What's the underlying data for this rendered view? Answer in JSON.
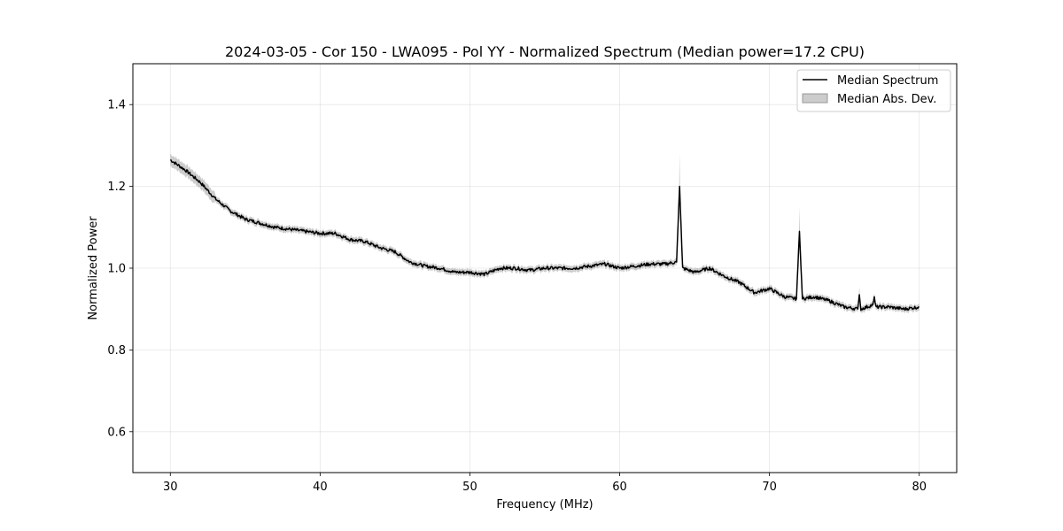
{
  "chart_data": {
    "type": "line",
    "title": "2024-03-05 - Cor 150 - LWA095 - Pol YY - Normalized Spectrum (Median power=17.2 CPU)",
    "xlabel": "Frequency (MHz)",
    "ylabel": "Normalized Power",
    "xlim": [
      27.5,
      82.5
    ],
    "ylim": [
      0.5,
      1.5
    ],
    "xticks": [
      30,
      40,
      50,
      60,
      70,
      80
    ],
    "yticks": [
      0.6,
      0.8,
      1.0,
      1.2,
      1.4
    ],
    "xtick_labels": [
      "30",
      "40",
      "50",
      "60",
      "70",
      "80"
    ],
    "ytick_labels": [
      "0.6",
      "0.8",
      "1.0",
      "1.2",
      "1.4"
    ],
    "grid": true,
    "legend_position": "top-right",
    "legend": [
      "Median Spectrum",
      "Median Abs. Dev."
    ],
    "series": [
      {
        "name": "Median Spectrum",
        "color": "#000000",
        "x": [
          30,
          31,
          32,
          33,
          34,
          35,
          36,
          37,
          38,
          39,
          40,
          41,
          42,
          43,
          44,
          45,
          46,
          47,
          48,
          49,
          50,
          51,
          52,
          53,
          54,
          55,
          56,
          57,
          58,
          59,
          60,
          61,
          62,
          63,
          63.8,
          64,
          64.2,
          65,
          66,
          67,
          68,
          69,
          70,
          71,
          71.8,
          72,
          72.2,
          73,
          74,
          75,
          75.9,
          76,
          76.1,
          76.9,
          77,
          77.1,
          78,
          79,
          80
        ],
        "y": [
          1.265,
          1.24,
          1.21,
          1.17,
          1.14,
          1.12,
          1.11,
          1.1,
          1.095,
          1.09,
          1.085,
          1.085,
          1.07,
          1.065,
          1.05,
          1.04,
          1.015,
          1.005,
          1.0,
          0.99,
          0.99,
          0.985,
          1.0,
          1.0,
          0.995,
          1.0,
          1.0,
          1.0,
          1.005,
          1.01,
          1.0,
          1.005,
          1.01,
          1.01,
          1.015,
          1.2,
          1.0,
          0.99,
          1.0,
          0.98,
          0.965,
          0.94,
          0.95,
          0.93,
          0.925,
          1.09,
          0.925,
          0.93,
          0.92,
          0.905,
          0.9,
          0.935,
          0.9,
          0.91,
          0.93,
          0.905,
          0.905,
          0.9,
          0.905
        ]
      },
      {
        "name": "Median Abs. Dev.",
        "color": "#999999",
        "fill_opacity": 0.5,
        "mad": 0.008,
        "spikes": [
          {
            "x": 64,
            "upper": 1.28
          },
          {
            "x": 72,
            "upper": 1.15
          },
          {
            "x": 76,
            "upper": 0.955
          }
        ]
      }
    ]
  }
}
